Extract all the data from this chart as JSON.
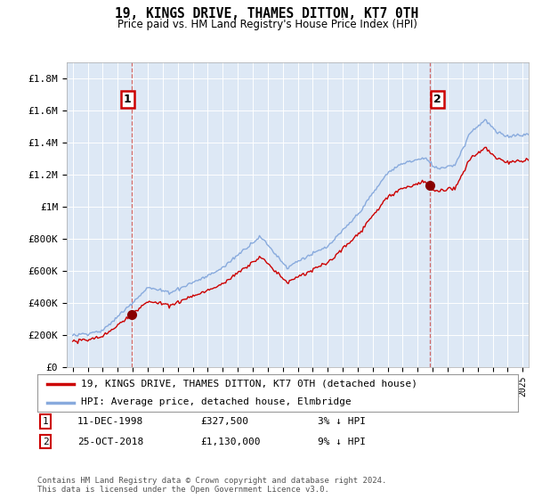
{
  "title": "19, KINGS DRIVE, THAMES DITTON, KT7 0TH",
  "subtitle": "Price paid vs. HM Land Registry's House Price Index (HPI)",
  "ylim": [
    0,
    1900000
  ],
  "yticks": [
    0,
    200000,
    400000,
    600000,
    800000,
    1000000,
    1200000,
    1400000,
    1600000,
    1800000
  ],
  "ytick_labels": [
    "£0",
    "£200K",
    "£400K",
    "£600K",
    "£800K",
    "£1M",
    "£1.2M",
    "£1.4M",
    "£1.6M",
    "£1.8M"
  ],
  "sale1_year": 1998.95,
  "sale1_price": 327500,
  "sale1_label": "1",
  "sale1_date": "11-DEC-1998",
  "sale1_price_str": "£327,500",
  "sale1_hpi_diff": "3% ↓ HPI",
  "sale2_year": 2018.83,
  "sale2_price": 1130000,
  "sale2_label": "2",
  "sale2_date": "25-OCT-2018",
  "sale2_price_str": "£1,130,000",
  "sale2_hpi_diff": "9% ↓ HPI",
  "line_color_property": "#cc0000",
  "line_color_hpi": "#88aadd",
  "vline_color": "#cc6666",
  "legend_label_property": "19, KINGS DRIVE, THAMES DITTON, KT7 0TH (detached house)",
  "legend_label_hpi": "HPI: Average price, detached house, Elmbridge",
  "footer": "Contains HM Land Registry data © Crown copyright and database right 2024.\nThis data is licensed under the Open Government Licence v3.0.",
  "background_color": "#ffffff",
  "plot_bg_color": "#dde8f5",
  "grid_color": "#ffffff"
}
